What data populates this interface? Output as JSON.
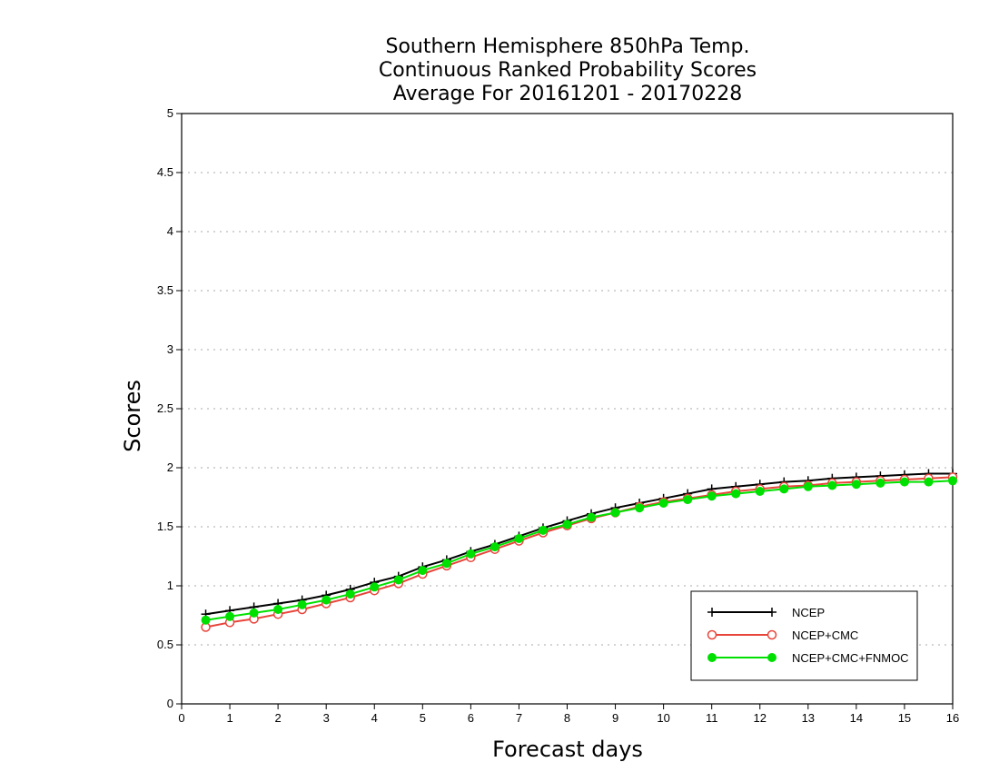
{
  "chart_data": {
    "type": "line",
    "title": [
      "Southern Hemisphere 850hPa Temp.",
      "Continuous Ranked Probability Scores",
      "Average For 20161201 - 20170228"
    ],
    "xlabel": "Forecast days",
    "ylabel": "Scores",
    "xlim": [
      0,
      16
    ],
    "ylim": [
      0,
      5
    ],
    "xticks": [
      "0",
      "1",
      "2",
      "3",
      "4",
      "5",
      "6",
      "7",
      "8",
      "9",
      "10",
      "11",
      "12",
      "13",
      "14",
      "15",
      "16"
    ],
    "yticks": [
      "0",
      "0.5",
      "1",
      "1.5",
      "2",
      "2.5",
      "3",
      "3.5",
      "4",
      "4.5",
      "5"
    ],
    "grid": "dotted horizontal",
    "legend_position": "bottom-right",
    "x": [
      0.5,
      1,
      1.5,
      2,
      2.5,
      3,
      3.5,
      4,
      4.5,
      5,
      5.5,
      6,
      6.5,
      7,
      7.5,
      8,
      8.5,
      9,
      9.5,
      10,
      10.5,
      11,
      11.5,
      12,
      12.5,
      13,
      13.5,
      14,
      14.5,
      15,
      15.5,
      16
    ],
    "series": [
      {
        "name": "NCEP",
        "color": "#000000",
        "marker": "plus",
        "values": [
          0.76,
          0.79,
          0.82,
          0.85,
          0.88,
          0.92,
          0.97,
          1.03,
          1.08,
          1.16,
          1.22,
          1.29,
          1.35,
          1.42,
          1.49,
          1.55,
          1.61,
          1.66,
          1.7,
          1.74,
          1.78,
          1.82,
          1.84,
          1.86,
          1.88,
          1.89,
          1.91,
          1.92,
          1.93,
          1.94,
          1.95,
          1.95
        ]
      },
      {
        "name": "NCEP+CMC",
        "color": "#e8443a",
        "marker": "open-circle",
        "values": [
          0.65,
          0.69,
          0.72,
          0.76,
          0.8,
          0.85,
          0.9,
          0.96,
          1.02,
          1.1,
          1.17,
          1.24,
          1.31,
          1.38,
          1.45,
          1.51,
          1.57,
          1.62,
          1.67,
          1.71,
          1.74,
          1.77,
          1.8,
          1.82,
          1.84,
          1.85,
          1.87,
          1.88,
          1.89,
          1.9,
          1.91,
          1.92
        ]
      },
      {
        "name": "NCEP+CMC+FNMOC",
        "color": "#00e000",
        "marker": "filled-circle",
        "values": [
          0.71,
          0.74,
          0.77,
          0.8,
          0.84,
          0.88,
          0.93,
          0.99,
          1.05,
          1.13,
          1.19,
          1.27,
          1.33,
          1.4,
          1.47,
          1.52,
          1.58,
          1.62,
          1.66,
          1.7,
          1.73,
          1.76,
          1.78,
          1.8,
          1.82,
          1.84,
          1.85,
          1.86,
          1.87,
          1.88,
          1.88,
          1.89
        ]
      }
    ]
  }
}
